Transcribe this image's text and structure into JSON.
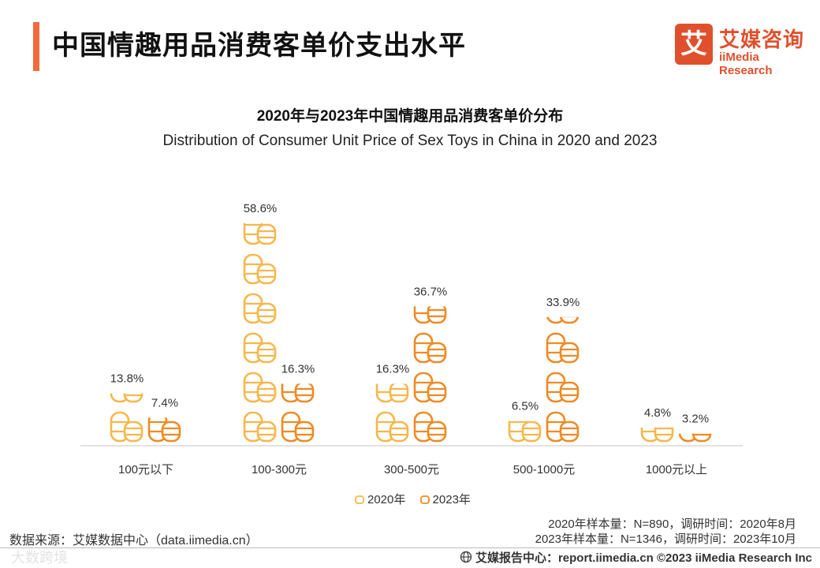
{
  "header": {
    "title": "中国情趣用品消费客单价支出水平",
    "accent_color": "#F26A3D",
    "logo_glyph": "艾",
    "logo_cn": "艾媒咨询",
    "logo_en": "iiMedia Research",
    "logo_color": "#E0502D"
  },
  "chart_data": {
    "type": "bar",
    "title": "2020年与2023年中国情趣用品消费客单价分布",
    "subtitle": "Distribution of Consumer Unit Price of Sex Toys in China in 2020 and 2023",
    "categories": [
      "100元以下",
      "100-300元",
      "300-500元",
      "500-1000元",
      "1000元以上"
    ],
    "series": [
      {
        "name": "2020年",
        "values": [
          13.8,
          58.6,
          16.3,
          6.5,
          4.8
        ],
        "labels": [
          "13.8%",
          "58.6%",
          "16.3%",
          "6.5%",
          "4.8%"
        ],
        "color": "#F7B74B"
      },
      {
        "name": "2023年",
        "values": [
          7.4,
          16.3,
          36.7,
          33.9,
          3.2
        ],
        "labels": [
          "7.4%",
          "16.3%",
          "36.7%",
          "33.9%",
          "3.2%"
        ],
        "color": "#EF8A22"
      }
    ],
    "ylim": [
      0,
      60
    ],
    "xlabel": "",
    "ylabel": "",
    "legend": "bottom-center",
    "grid": false
  },
  "footer": {
    "source": "数据来源：艾媒数据中心（data.iimedia.cn）",
    "sample_2020": "2020年样本量：N=890，调研时间：2020年8月",
    "sample_2023": "2023年样本量：N=1346，调研时间：2023年10月",
    "report": "艾媒报告中心：report.iimedia.cn ©2023  iiMedia Research  Inc",
    "watermark": "大数跨境"
  }
}
